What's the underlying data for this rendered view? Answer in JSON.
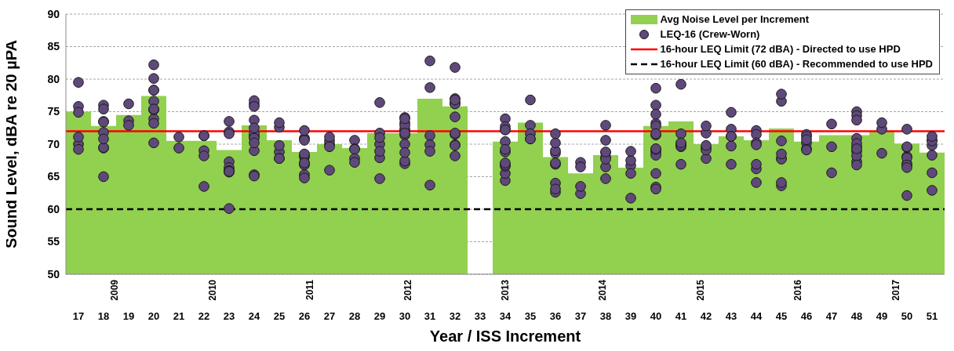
{
  "chart_data": {
    "type": "scatter",
    "xlabel": "Year / ISS Increment",
    "ylabel": "Sound Level, dBA re 20 µPA",
    "ylim": [
      50,
      90
    ],
    "yticks": [
      50,
      55,
      60,
      65,
      70,
      75,
      80,
      85,
      90
    ],
    "grid": "y",
    "legend": "top right",
    "marker": "circle",
    "categories": [
      "17",
      "18",
      "19",
      "20",
      "21",
      "22",
      "23",
      "24",
      "25",
      "26",
      "27",
      "28",
      "29",
      "30",
      "31",
      "32",
      "33",
      "34",
      "35",
      "36",
      "37",
      "38",
      "39",
      "40",
      "41",
      "42",
      "43",
      "44",
      "45",
      "46",
      "47",
      "48",
      "49",
      "50",
      "51"
    ],
    "annotations": [
      "2009",
      "2010",
      "2011",
      "2012",
      "2013",
      "2014",
      "2015",
      "2016",
      "2017"
    ],
    "series": [
      {
        "name": "Avg Noise Level per Increment",
        "type": "bar",
        "color": "#92d050",
        "values": [
          75.0,
          72.8,
          74.5,
          77.4,
          70.5,
          70.5,
          69.1,
          72.9,
          70.6,
          68.8,
          70.0,
          69.4,
          71.7,
          71.7,
          77.0,
          75.8,
          null,
          70.4,
          73.3,
          68.0,
          65.5,
          68.3,
          66.4,
          72.8,
          73.5,
          70.0,
          71.2,
          70.6,
          72.4,
          70.4,
          71.4,
          71.4,
          72.0,
          70.1,
          68.7
        ]
      },
      {
        "name": "LEQ-16 (Crew-Worn)",
        "color": "#5f497a",
        "x": [
          "17",
          "17",
          "17",
          "17",
          "17",
          "17",
          "18",
          "18",
          "18",
          "18",
          "18",
          "18",
          "18",
          "18",
          "18",
          "19",
          "19",
          "19",
          "20",
          "20",
          "20",
          "20",
          "20",
          "20",
          "20",
          "20",
          "20",
          "20",
          "20",
          "21",
          "21",
          "22",
          "22",
          "22",
          "22",
          "22",
          "23",
          "23",
          "23",
          "23",
          "23",
          "23",
          "23",
          "23",
          "23",
          "23",
          "24",
          "24",
          "24",
          "24",
          "24",
          "24",
          "24",
          "24",
          "24",
          "24",
          "24",
          "24",
          "25",
          "25",
          "25",
          "25",
          "25",
          "25",
          "26",
          "26",
          "26",
          "26",
          "26",
          "26",
          "26",
          "26",
          "26",
          "26",
          "26",
          "26",
          "27",
          "27",
          "27",
          "27",
          "27",
          "28",
          "28",
          "28",
          "28",
          "28",
          "29",
          "29",
          "29",
          "29",
          "29",
          "29",
          "29",
          "30",
          "30",
          "30",
          "30",
          "30",
          "30",
          "30",
          "30",
          "30",
          "30",
          "30",
          "30",
          "31",
          "31",
          "31",
          "31",
          "31",
          "31",
          "32",
          "32",
          "32",
          "32",
          "32",
          "32",
          "32",
          "32",
          "32",
          "32",
          "32",
          "32",
          "34",
          "34",
          "34",
          "34",
          "34",
          "34",
          "34",
          "34",
          "34",
          "34",
          "34",
          "34",
          "35",
          "35",
          "35",
          "35",
          "35",
          "36",
          "36",
          "36",
          "36",
          "36",
          "36",
          "36",
          "36",
          "36",
          "37",
          "37",
          "37",
          "37",
          "38",
          "38",
          "38",
          "38",
          "38",
          "38",
          "38",
          "38",
          "39",
          "39",
          "39",
          "39",
          "39",
          "40",
          "40",
          "40",
          "40",
          "40",
          "40",
          "40",
          "40",
          "40",
          "40",
          "40",
          "40",
          "40",
          "40",
          "41",
          "41",
          "41",
          "41",
          "41",
          "41",
          "41",
          "41",
          "42",
          "42",
          "42",
          "42",
          "42",
          "42",
          "43",
          "43",
          "43",
          "43",
          "43",
          "43",
          "44",
          "44",
          "44",
          "44",
          "44",
          "44",
          "44",
          "45",
          "45",
          "45",
          "45",
          "45",
          "45",
          "45",
          "45",
          "46",
          "46",
          "46",
          "46",
          "46",
          "46",
          "47",
          "47",
          "47",
          "48",
          "48",
          "48",
          "48",
          "48",
          "48",
          "48",
          "48",
          "48",
          "48",
          "48",
          "49",
          "49",
          "49",
          "50",
          "50",
          "50",
          "50",
          "50",
          "50",
          "50",
          "50",
          "50",
          "51",
          "51",
          "51",
          "51",
          "51",
          "51",
          "51"
        ],
        "values": [
          79.5,
          75.8,
          74.9,
          70.0,
          71.1,
          69.2,
          76.0,
          73.5,
          69.4,
          71.8,
          65.0,
          73.4,
          69.5,
          75.4,
          70.8,
          76.2,
          73.6,
          72.9,
          80.1,
          75.3,
          73.9,
          78.3,
          70.2,
          73.2,
          76.6,
          82.2,
          75.3,
          78.3,
          75.4,
          71.1,
          69.4,
          71.3,
          71.3,
          69.0,
          68.2,
          63.5,
          67.3,
          66.4,
          71.9,
          65.9,
          65.7,
          60.1,
          73.5,
          71.6,
          65.9,
          65.8,
          76.2,
          76.7,
          73.7,
          71.2,
          71.6,
          70.9,
          72.5,
          75.8,
          69.0,
          70.2,
          65.3,
          65.1,
          68.8,
          72.6,
          69.8,
          67.8,
          67.8,
          73.3,
          70.9,
          70.8,
          70.6,
          65.3,
          68.0,
          68.2,
          72.1,
          64.8,
          68.5,
          66.8,
          67.1,
          67.1,
          70.0,
          70.5,
          71.1,
          69.6,
          66.0,
          70.6,
          69.3,
          69.2,
          67.8,
          67.2,
          71.7,
          70.0,
          67.9,
          68.9,
          71.0,
          76.4,
          64.7,
          72.1,
          73.3,
          67.0,
          72.3,
          71.4,
          74.1,
          72.9,
          70.0,
          67.4,
          73.9,
          68.7,
          71.7,
          82.8,
          71.3,
          78.7,
          69.9,
          68.9,
          63.7,
          69.9,
          77.0,
          76.2,
          71.5,
          76.3,
          74.2,
          71.7,
          69.8,
          81.8,
          76.2,
          68.2,
          76.8,
          73.9,
          70.4,
          72.7,
          72.2,
          72.2,
          68.8,
          64.4,
          65.5,
          69.2,
          66.6,
          66.8,
          67.1,
          72.9,
          70.8,
          76.8,
          71.6,
          70.8,
          66.9,
          64.0,
          68.6,
          69.0,
          70.2,
          71.6,
          62.6,
          67.1,
          63.1,
          67.2,
          62.4,
          66.5,
          63.5,
          64.7,
          68.7,
          66.5,
          68.0,
          70.6,
          67.7,
          72.9,
          68.8,
          66.7,
          67.5,
          61.7,
          68.9,
          65.5,
          76.0,
          71.4,
          73.2,
          68.8,
          78.6,
          72.8,
          68.3,
          63.4,
          71.6,
          63.1,
          65.5,
          74.6,
          69.2,
          69.3,
          70.0,
          79.2,
          70.0,
          71.6,
          66.9,
          69.6,
          69.8,
          70.2,
          71.7,
          69.4,
          67.8,
          72.8,
          69.1,
          69.8,
          66.9,
          69.7,
          72.3,
          71.2,
          71.2,
          74.9,
          72.1,
          66.2,
          71.5,
          70.2,
          69.9,
          64.1,
          66.9,
          76.6,
          63.6,
          67.8,
          77.7,
          64.1,
          67.7,
          70.5,
          68.5,
          70.2,
          71.5,
          69.3,
          71.2,
          70.7,
          69.1,
          69.6,
          73.1,
          65.6,
          75.0,
          70.9,
          69.6,
          74.4,
          68.9,
          70.1,
          73.7,
          67.3,
          68.2,
          66.8,
          69.3,
          68.6,
          72.3,
          73.3,
          67.0,
          68.1,
          69.5,
          72.3,
          62.1,
          69.6,
          67.9,
          66.8,
          66.4,
          70.6,
          69.8,
          62.9,
          70.5,
          65.6,
          71.2,
          68.3
        ]
      }
    ],
    "ref_lines": [
      {
        "axis": "y",
        "value": 72,
        "label": "16-hour LEQ Limit (72 dBA) - Directed to use HPD",
        "color": "#ff0000",
        "line_style": "solid"
      },
      {
        "axis": "y",
        "value": 60,
        "label": "16-hour LEQ Limit (60 dBA) - Recommended to use HPD",
        "color": "#000000",
        "line_style": "dashed"
      }
    ]
  }
}
